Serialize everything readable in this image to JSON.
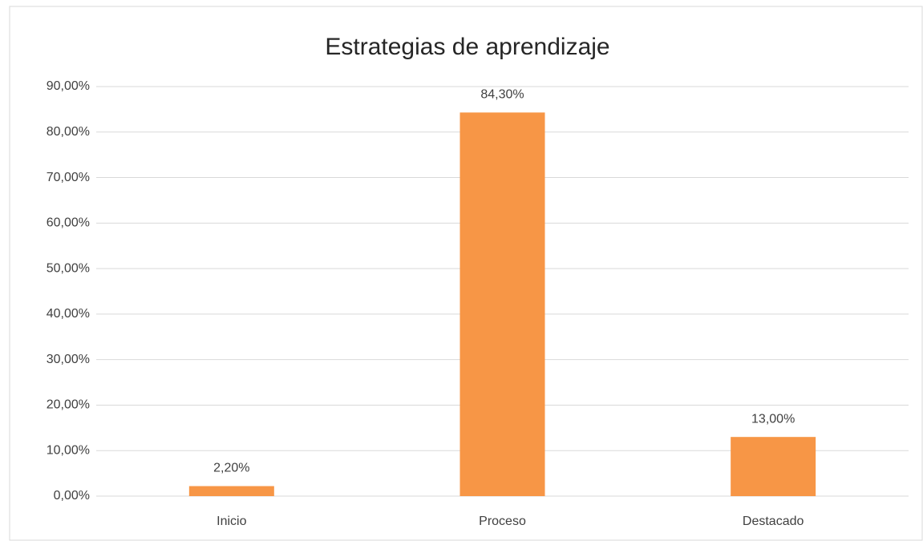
{
  "chart_data": {
    "type": "bar",
    "title": "Estrategias de aprendizaje",
    "categories": [
      "Inicio",
      "Proceso",
      "Destacado"
    ],
    "values": [
      2.2,
      84.3,
      13.0
    ],
    "value_labels": [
      "2,20%",
      "84,30%",
      "13,00%"
    ],
    "color": "#f79646",
    "ylim": [
      0,
      90
    ],
    "yticks": [
      {
        "value": 0,
        "label": "0,00%"
      },
      {
        "value": 10,
        "label": "10,00%"
      },
      {
        "value": 20,
        "label": "20,00%"
      },
      {
        "value": 30,
        "label": "30,00%"
      },
      {
        "value": 40,
        "label": "40,00%"
      },
      {
        "value": 50,
        "label": "50,00%"
      },
      {
        "value": 60,
        "label": "60,00%"
      },
      {
        "value": 70,
        "label": "70,00%"
      },
      {
        "value": 80,
        "label": "80,00%"
      },
      {
        "value": 90,
        "label": "90,00%"
      }
    ],
    "grid": true
  }
}
